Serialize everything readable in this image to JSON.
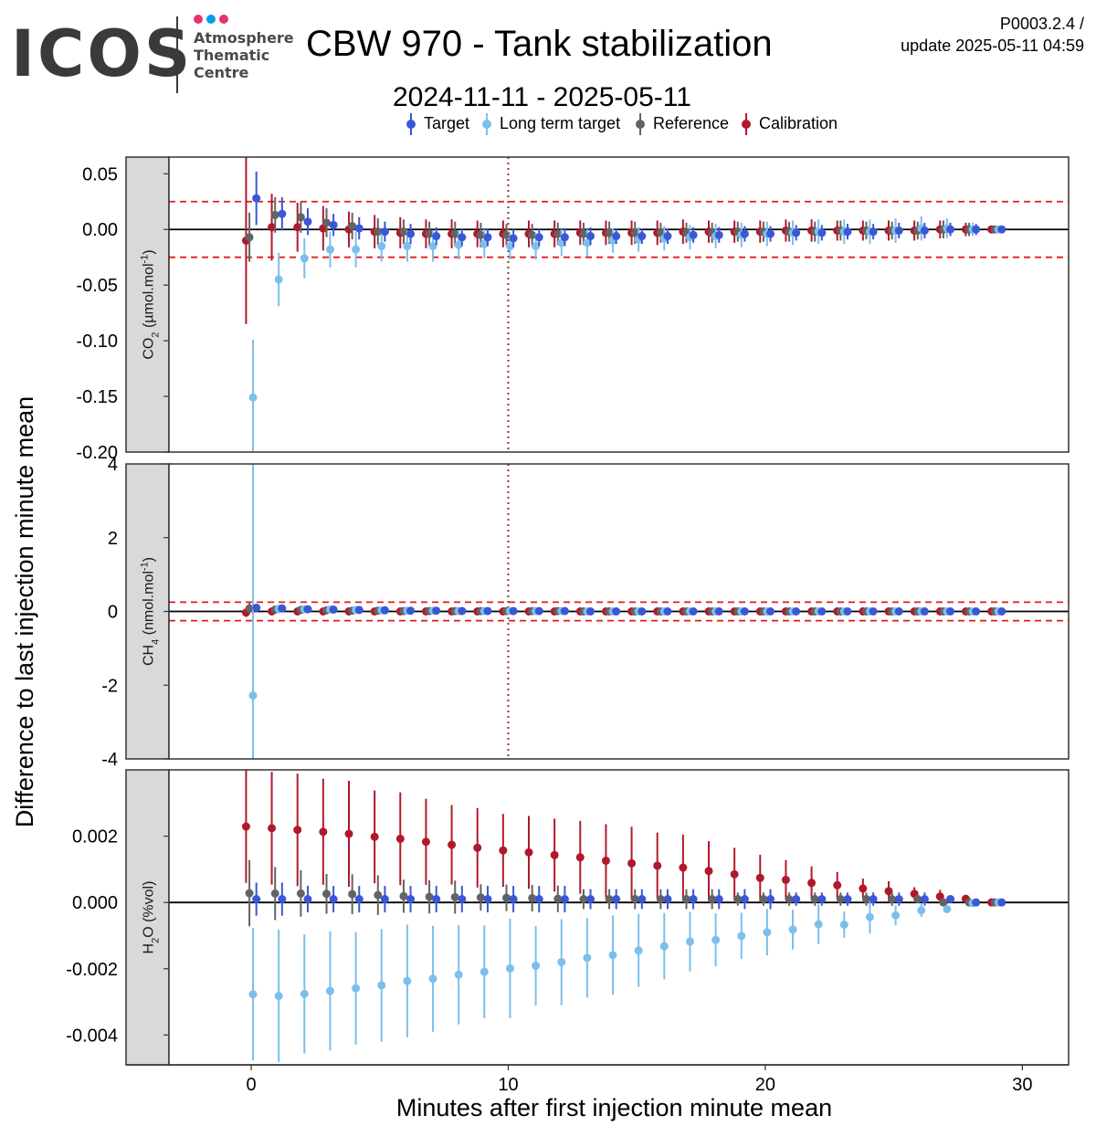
{
  "logo": {
    "brand": "ICOS",
    "subtitle_lines": [
      "Atmosphere",
      "Thematic",
      "Centre"
    ],
    "dot_colors": [
      "#e6336f",
      "#00a0e4",
      "#e6336f"
    ]
  },
  "header": {
    "title": "CBW 970 - Tank stabilization",
    "version": "P0003.2.4 /",
    "update": "update  2025-05-11 04:59",
    "date_range": "2024-11-11 - 2025-05-11"
  },
  "legend": [
    {
      "label": "Target",
      "color": "#3a57d6"
    },
    {
      "label": "Long term target",
      "color": "#7cbfec"
    },
    {
      "label": "Reference",
      "color": "#636363"
    },
    {
      "label": "Calibration",
      "color": "#b2182b"
    }
  ],
  "colors": {
    "target": "#3a57d6",
    "long_term_target": "#7cbfec",
    "reference": "#636363",
    "calibration": "#b2182b",
    "limit_line": "#e41a1c",
    "vline": "#8b3a3a",
    "strip": "#d9d9d9"
  },
  "chart_data": {
    "type": "scatter",
    "xlabel": "Minutes after first injection minute mean",
    "ylabel": "Difference to last injection minute mean",
    "xlim": [
      -3.2,
      31.8
    ],
    "x_ticks": [
      0,
      10,
      20,
      30
    ],
    "x_tick_labels": [
      "0",
      "10",
      "20",
      "30"
    ],
    "vline_x": 10,
    "dodge": {
      "calibration": -0.2,
      "reference": -0.07,
      "long_term_target": 0.07,
      "target": 0.2
    },
    "panels": [
      {
        "strip_main": "CO",
        "strip_sub": "2",
        "strip_unit_pre": " (µmol.mol",
        "strip_sup": "-1",
        "strip_post": ")",
        "ylim": [
          -0.2,
          0.065
        ],
        "y_ticks": [
          0.05,
          0.0,
          -0.05,
          -0.1,
          -0.15,
          -0.2
        ],
        "y_tick_labels": [
          "0.05",
          "0.00",
          "-0.05",
          "-0.10",
          "-0.15",
          "-0.20"
        ],
        "limit": 0.025,
        "series": {
          "calibration": {
            "y": [
              -0.01,
              0.002,
              0.002,
              0.001,
              0.0,
              -0.002,
              -0.003,
              -0.004,
              -0.004,
              -0.004,
              -0.004,
              -0.004,
              -0.004,
              -0.003,
              -0.003,
              -0.003,
              -0.003,
              -0.002,
              -0.002,
              -0.002,
              -0.002,
              -0.001,
              -0.001,
              -0.001,
              -0.001,
              -0.001,
              -0.001,
              0.0,
              0.0,
              0.0
            ],
            "err": [
              0.075,
              0.03,
              0.022,
              0.02,
              0.016,
              0.015,
              0.014,
              0.013,
              0.013,
              0.012,
              0.012,
              0.012,
              0.012,
              0.011,
              0.011,
              0.011,
              0.011,
              0.011,
              0.01,
              0.01,
              0.01,
              0.01,
              0.01,
              0.009,
              0.009,
              0.009,
              0.009,
              0.008,
              0.006,
              0.003
            ]
          },
          "reference": {
            "y": [
              -0.007,
              0.013,
              0.011,
              0.006,
              0.003,
              -0.002,
              -0.002,
              -0.004,
              -0.004,
              -0.005,
              -0.005,
              -0.005,
              -0.004,
              -0.004,
              -0.003,
              -0.003,
              -0.003,
              -0.003,
              -0.003,
              -0.002,
              -0.002,
              -0.002,
              -0.002,
              -0.001,
              -0.001,
              -0.001,
              -0.001,
              0.0,
              0.0,
              0.0
            ],
            "err": [
              0.022,
              0.016,
              0.014,
              0.013,
              0.012,
              0.012,
              0.011,
              0.011,
              0.011,
              0.011,
              0.01,
              0.01,
              0.01,
              0.01,
              0.01,
              0.01,
              0.009,
              0.009,
              0.009,
              0.009,
              0.009,
              0.009,
              0.009,
              0.009,
              0.008,
              0.008,
              0.008,
              0.008,
              0.006,
              0.003
            ]
          },
          "long_term_target": {
            "y": [
              -0.151,
              -0.045,
              -0.026,
              -0.018,
              -0.018,
              -0.015,
              -0.015,
              -0.015,
              -0.014,
              -0.013,
              -0.015,
              -0.015,
              -0.012,
              -0.012,
              -0.01,
              -0.009,
              -0.008,
              -0.007,
              -0.006,
              -0.005,
              -0.004,
              -0.003,
              -0.002,
              -0.002,
              -0.002,
              -0.001,
              0.001,
              0.001,
              0.0,
              0.0
            ],
            "err": [
              0.052,
              0.024,
              0.018,
              0.016,
              0.016,
              0.014,
              0.014,
              0.014,
              0.013,
              0.013,
              0.012,
              0.012,
              0.012,
              0.012,
              0.011,
              0.011,
              0.011,
              0.011,
              0.011,
              0.011,
              0.011,
              0.011,
              0.011,
              0.011,
              0.011,
              0.011,
              0.011,
              0.009,
              0.006,
              0.003
            ]
          },
          "target": {
            "y": [
              0.028,
              0.014,
              0.007,
              0.004,
              0.001,
              -0.002,
              -0.004,
              -0.006,
              -0.007,
              -0.007,
              -0.008,
              -0.007,
              -0.007,
              -0.006,
              -0.006,
              -0.006,
              -0.006,
              -0.005,
              -0.005,
              -0.004,
              -0.004,
              -0.003,
              -0.003,
              -0.002,
              -0.002,
              -0.001,
              -0.001,
              0.0,
              0.0,
              0.0
            ],
            "err": [
              0.024,
              0.015,
              0.012,
              0.01,
              0.01,
              0.009,
              0.009,
              0.008,
              0.008,
              0.008,
              0.008,
              0.008,
              0.008,
              0.008,
              0.007,
              0.007,
              0.007,
              0.007,
              0.007,
              0.007,
              0.007,
              0.007,
              0.007,
              0.007,
              0.007,
              0.007,
              0.007,
              0.006,
              0.005,
              0.003
            ]
          }
        }
      },
      {
        "strip_main": "CH",
        "strip_sub": "4",
        "strip_unit_pre": " (nmol.mol",
        "strip_sup": "-1",
        "strip_post": ")",
        "ylim": [
          -4,
          4
        ],
        "y_ticks": [
          4,
          2,
          0,
          -2,
          -4
        ],
        "y_tick_labels": [
          "4",
          "2",
          "0",
          "-2",
          "-4"
        ],
        "limit": 0.25,
        "series": {
          "calibration": {
            "y": [
              -0.03,
              0.0,
              0.0,
              0.0,
              0.0,
              0.0,
              0.0,
              0.0,
              0.0,
              0.0,
              0.0,
              0.0,
              0.0,
              0.0,
              0.0,
              0.0,
              0.0,
              0.0,
              0.0,
              0.0,
              0.0,
              0.0,
              0.0,
              0.0,
              0.0,
              0.0,
              0.0,
              0.0,
              0.0,
              0.0
            ],
            "err": [
              0.12,
              0.06,
              0.05,
              0.05,
              0.05,
              0.05,
              0.05,
              0.05,
              0.05,
              0.05,
              0.05,
              0.05,
              0.05,
              0.05,
              0.05,
              0.05,
              0.05,
              0.05,
              0.05,
              0.05,
              0.05,
              0.05,
              0.05,
              0.05,
              0.05,
              0.05,
              0.05,
              0.05,
              0.05,
              0.05
            ]
          },
          "reference": {
            "y": [
              0.08,
              0.05,
              0.04,
              0.03,
              0.02,
              0.02,
              0.01,
              0.01,
              0.01,
              0.01,
              0.01,
              0.01,
              0.01,
              0.0,
              0.0,
              0.0,
              0.0,
              0.0,
              0.0,
              0.0,
              0.0,
              0.0,
              0.0,
              0.0,
              0.0,
              0.0,
              0.0,
              0.0,
              0.0,
              0.0
            ],
            "err": [
              0.15,
              0.08,
              0.07,
              0.06,
              0.06,
              0.06,
              0.06,
              0.06,
              0.06,
              0.06,
              0.06,
              0.06,
              0.06,
              0.06,
              0.06,
              0.06,
              0.06,
              0.06,
              0.06,
              0.06,
              0.06,
              0.06,
              0.06,
              0.06,
              0.06,
              0.06,
              0.06,
              0.06,
              0.06,
              0.06
            ]
          },
          "long_term_target": {
            "y": [
              -2.28,
              0.07,
              0.06,
              0.05,
              0.04,
              0.03,
              0.02,
              0.02,
              0.01,
              0.01,
              0.01,
              0.01,
              0.01,
              0.0,
              0.0,
              0.0,
              0.0,
              0.0,
              0.0,
              0.0,
              0.0,
              0.0,
              0.0,
              0.0,
              0.0,
              0.0,
              0.0,
              0.0,
              0.0,
              0.0
            ],
            "err": [
              6.3,
              0.12,
              0.09,
              0.07,
              0.07,
              0.07,
              0.07,
              0.07,
              0.07,
              0.07,
              0.07,
              0.07,
              0.07,
              0.07,
              0.07,
              0.07,
              0.07,
              0.07,
              0.07,
              0.07,
              0.07,
              0.07,
              0.07,
              0.07,
              0.07,
              0.07,
              0.07,
              0.07,
              0.07,
              0.07
            ]
          },
          "target": {
            "y": [
              0.1,
              0.08,
              0.06,
              0.05,
              0.04,
              0.03,
              0.02,
              0.02,
              0.01,
              0.01,
              0.01,
              0.01,
              0.01,
              0.0,
              0.0,
              0.0,
              0.0,
              0.0,
              0.0,
              0.0,
              0.0,
              0.0,
              0.0,
              0.0,
              0.0,
              0.0,
              0.0,
              0.0,
              0.0,
              0.0
            ],
            "err": [
              0.1,
              0.08,
              0.07,
              0.06,
              0.06,
              0.06,
              0.06,
              0.06,
              0.06,
              0.06,
              0.06,
              0.06,
              0.06,
              0.06,
              0.06,
              0.06,
              0.06,
              0.06,
              0.06,
              0.06,
              0.06,
              0.06,
              0.06,
              0.06,
              0.06,
              0.06,
              0.06,
              0.06,
              0.06,
              0.06
            ]
          }
        }
      },
      {
        "strip_main": "H",
        "strip_sub": "2",
        "strip_unit_pre": "O (%vol)",
        "strip_sup": "",
        "strip_post": "",
        "ylim": [
          -0.0049,
          0.004
        ],
        "y_ticks": [
          0.002,
          0.0,
          -0.002,
          -0.004
        ],
        "y_tick_labels": [
          "0.002",
          "0.000",
          "-0.002",
          "-0.004"
        ],
        "limit": null,
        "series": {
          "calibration": {
            "y": [
              0.00229,
              0.00224,
              0.00219,
              0.00213,
              0.00207,
              0.00198,
              0.00192,
              0.00183,
              0.00174,
              0.00165,
              0.00157,
              0.00151,
              0.00143,
              0.00136,
              0.00126,
              0.00118,
              0.00111,
              0.00105,
              0.00095,
              0.00085,
              0.00074,
              0.00068,
              0.00059,
              0.00052,
              0.00042,
              0.00034,
              0.00026,
              0.00018,
              0.00011,
              0.0
            ],
            "err": [
              0.0017,
              0.0017,
              0.0017,
              0.0016,
              0.0016,
              0.0014,
              0.0014,
              0.0013,
              0.0012,
              0.0012,
              0.0011,
              0.0011,
              0.0011,
              0.0011,
              0.0011,
              0.0011,
              0.001,
              0.001,
              0.0009,
              0.0008,
              0.0007,
              0.0006,
              0.0005,
              0.0004,
              0.0003,
              0.0003,
              0.0002,
              0.0002,
              0.0001,
              5e-05
            ]
          },
          "reference": {
            "y": [
              0.00028,
              0.00027,
              0.00027,
              0.00026,
              0.00025,
              0.00022,
              0.00019,
              0.00017,
              0.00016,
              0.00015,
              0.00014,
              0.00013,
              0.00011,
              0.0001,
              0.0001,
              0.0001,
              0.0001,
              0.0001,
              0.0001,
              0.0001,
              0.0001,
              0.0001,
              0.0001,
              0.0001,
              0.0001,
              0.0001,
              0.0001,
              0.0,
              0.0,
              0.0
            ],
            "err": [
              0.001,
              0.0008,
              0.0007,
              0.0006,
              0.0006,
              0.0006,
              0.0005,
              0.0005,
              0.0005,
              0.0004,
              0.0004,
              0.0004,
              0.0004,
              0.0003,
              0.0003,
              0.0003,
              0.0003,
              0.0003,
              0.0003,
              0.0002,
              0.0002,
              0.0002,
              0.0002,
              0.0002,
              0.0002,
              0.0002,
              0.0001,
              0.0001,
              0.0001,
              5e-05
            ]
          },
          "long_term_target": {
            "y": [
              -0.00277,
              -0.00282,
              -0.00276,
              -0.00267,
              -0.00259,
              -0.0025,
              -0.00237,
              -0.0023,
              -0.00218,
              -0.00209,
              -0.00199,
              -0.00191,
              -0.0018,
              -0.00167,
              -0.00159,
              -0.00145,
              -0.00132,
              -0.00118,
              -0.00113,
              -0.00101,
              -0.0009,
              -0.00082,
              -0.00066,
              -0.00067,
              -0.00044,
              -0.00039,
              -0.00024,
              -0.0002,
              -2e-05,
              0.0
            ],
            "err": [
              0.002,
              0.002,
              0.0018,
              0.0018,
              0.0017,
              0.0017,
              0.0017,
              0.0016,
              0.0015,
              0.0014,
              0.0015,
              0.0012,
              0.0013,
              0.0012,
              0.0012,
              0.0011,
              0.001,
              0.0009,
              0.0008,
              0.0007,
              0.0007,
              0.0006,
              0.0006,
              0.0004,
              0.0005,
              0.0003,
              0.0002,
              0.0001,
              0.0001,
              5e-05
            ]
          },
          "target": {
            "y": [
              0.0001,
              0.0001,
              0.0001,
              0.0001,
              0.0001,
              0.0001,
              0.0001,
              0.0001,
              0.0001,
              0.0001,
              0.0001,
              0.0001,
              0.0001,
              0.0001,
              0.0001,
              0.0001,
              0.0001,
              0.0001,
              0.0001,
              0.0001,
              0.0001,
              0.0001,
              0.0001,
              0.0001,
              0.0001,
              0.0001,
              0.0001,
              0.0001,
              0.0,
              0.0
            ],
            "err": [
              0.0005,
              0.0005,
              0.0004,
              0.0004,
              0.0004,
              0.0004,
              0.0004,
              0.0004,
              0.0004,
              0.0004,
              0.0004,
              0.0004,
              0.0004,
              0.0003,
              0.0003,
              0.0003,
              0.0003,
              0.0003,
              0.0003,
              0.0003,
              0.0003,
              0.0002,
              0.0002,
              0.0002,
              0.0002,
              0.0002,
              0.0002,
              0.0001,
              0.0001,
              5e-05
            ]
          }
        }
      }
    ]
  }
}
